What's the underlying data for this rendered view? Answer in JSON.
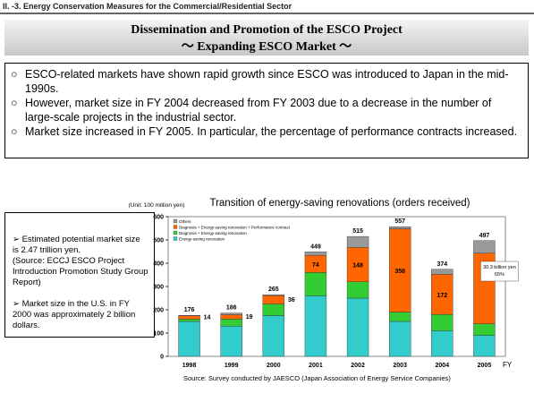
{
  "header": {
    "section": "II. -3. Energy Conservation Measures for the Commercial/Residential Sector",
    "title": "Dissemination and Promotion of the ESCO Project",
    "subtitle": "～ Expanding ESCO Market ～"
  },
  "bullets": [
    "ESCO-related markets have shown rapid growth since ESCO was introduced to Japan in the mid-1990s.",
    "However, market size in FY 2004 decreased from FY 2003 due to a decrease in the number of large-scale projects in the industrial sector.",
    "Market size increased in FY 2005. In particular, the percentage of performance contracts increased."
  ],
  "side_note": [
    "➢ Estimated potential market size is 2.47 trillion yen.",
    "(Source: ECCJ ESCO Project Introduction Promotion Study Group Report)",
    "➢ Market size in the U.S. in FY 2000 was approximately 2 billion dollars."
  ],
  "chart_data": {
    "type": "stacked_bar",
    "title": "Transition of energy-saving renovations (orders received)",
    "unit": "(Unit: 100 million yen)",
    "x_label": "FY",
    "source": "Source: Survey conducted by JAESCO (Japan Association of Energy Service Companies)",
    "categories": [
      "1998",
      "1999",
      "2000",
      "2001",
      "2002",
      "2003",
      "2004",
      "2005"
    ],
    "series": [
      {
        "name": "Energy-saving renovation",
        "color": "#33cccc",
        "values": [
          150,
          130,
          175,
          260,
          250,
          150,
          110,
          90
        ]
      },
      {
        "name": "Diagnosis + Energy-saving renovation",
        "color": "#33cc33",
        "values": [
          10,
          30,
          50,
          100,
          70,
          40,
          70,
          50
        ]
      },
      {
        "name": "Diagnosis + Energy-saving renovation + Performance contract",
        "color": "#ff6600",
        "values": [
          14,
          19,
          36,
          74,
          148,
          358,
          172,
          303
        ],
        "value_labels": [
          "14",
          "19",
          "36",
          "74",
          "148",
          "358",
          "172",
          null
        ]
      },
      {
        "name": "Others",
        "color": "#999999",
        "values": [
          2,
          7,
          4,
          15,
          47,
          9,
          22,
          54
        ]
      }
    ],
    "totals": [
      176,
      186,
      265,
      449,
      515,
      557,
      374,
      497
    ],
    "annotation": [
      "30.3 billion yen",
      "65%"
    ],
    "ylim": [
      0,
      600
    ],
    "yticks": [
      0,
      100,
      200,
      300,
      400,
      500,
      600
    ],
    "grid": false,
    "legend": "upper left"
  }
}
